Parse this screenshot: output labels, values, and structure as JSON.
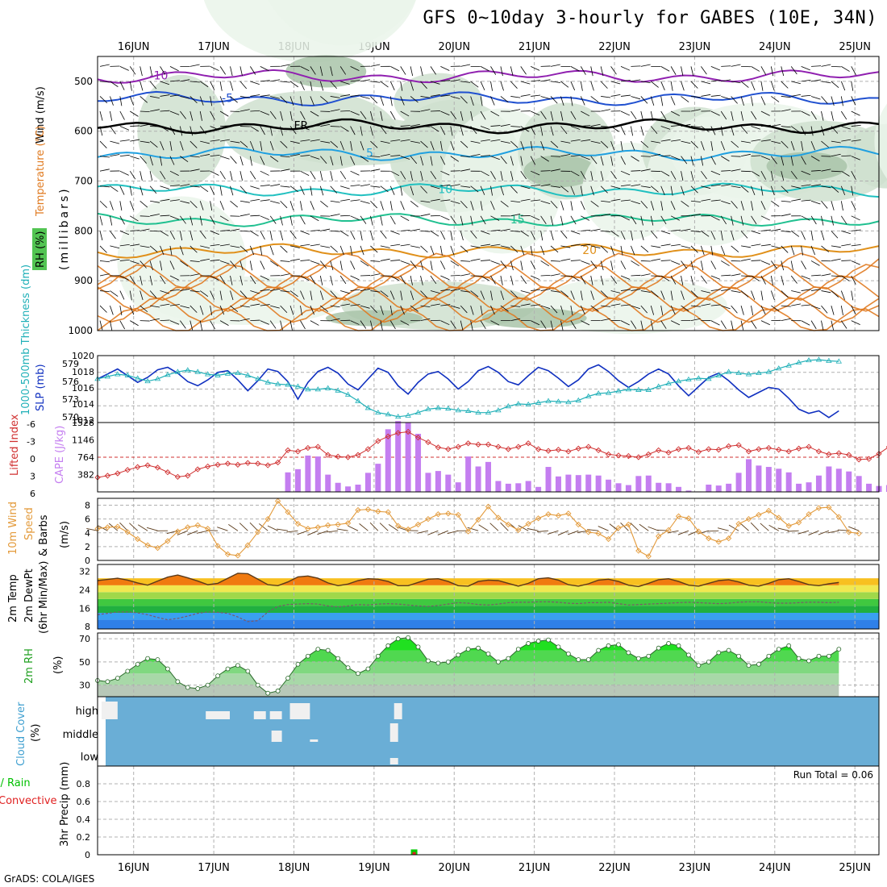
{
  "header": {
    "title": "GFS 0~10day 3-hourly for GABES (10E, 34N)",
    "credit": "GrADS: COLA/IGES"
  },
  "time_axis": {
    "labels": [
      "16JUN",
      "17JUN",
      "18JUN",
      "19JUN",
      "20JUN",
      "21JUN",
      "22JUN",
      "23JUN",
      "24JUN",
      "25JUN"
    ],
    "x_range_days": [
      15.55,
      25.3
    ]
  },
  "colors": {
    "frame": "#000000",
    "grid": "#b0b0b0",
    "rh_shade": [
      "#eaf4ea",
      "#cfe0cf",
      "#a9c4a9",
      "#52c452"
    ],
    "temp_contour": "#e38a1a",
    "cape_bar": "#c47ef0",
    "lifted_index": "#d03030",
    "slp": "#1030c0",
    "thickness": "#20b0b8",
    "wind_speed": "#e39a3a",
    "barb": "#5a3a1a",
    "rh2m": "#00dd00",
    "cloud": "#6aaed6",
    "precip_rain": "#00cc00",
    "precip_conv": "#e02020"
  },
  "chart_data": [
    {
      "id": "upper-air",
      "type": "heatmap",
      "ylabel": "(millibars)",
      "side_labels": [
        "Wind (m/s)",
        "Temperature (°C)",
        "RH (%)"
      ],
      "ylim": [
        1000,
        450
      ],
      "y_ticks": [
        500,
        600,
        700,
        800,
        900,
        1000
      ],
      "temperature_contours": [
        {
          "label": "-10",
          "pressure": 490
        },
        {
          "label": "-5",
          "pressure": 535
        },
        {
          "label": "FR",
          "pressure": 590
        },
        {
          "label": "5",
          "pressure": 645
        },
        {
          "label": "10",
          "pressure": 718
        },
        {
          "label": "15",
          "pressure": 778
        },
        {
          "label": "20",
          "pressure": 840
        }
      ],
      "rh_contour_labels": [
        "30",
        "50",
        "30",
        "30",
        "50",
        "30"
      ]
    },
    {
      "id": "slp-thickness",
      "type": "line",
      "xlabel": "",
      "ylabel_left": "1000-500mb Thickness (dm)",
      "ylabel_right": "SLP (mb)",
      "left_ticks": [
        "579",
        "576",
        "573",
        "570"
      ],
      "right_ticks": [
        "1020",
        "1018",
        "1016",
        "1014",
        "1012"
      ],
      "ylim_slp": [
        1012,
        1020
      ],
      "series": [
        {
          "name": "SLP",
          "values": [
            1017.2,
            1017.8,
            1018.4,
            1017.6,
            1016.8,
            1017.4,
            1018.3,
            1018.6,
            1017.9,
            1016.9,
            1016.4,
            1017.1,
            1018.0,
            1018.2,
            1017.1,
            1015.8,
            1017.0,
            1018.4,
            1018.1,
            1016.9,
            1014.8,
            1016.8,
            1018.1,
            1018.6,
            1017.9,
            1016.6,
            1015.9,
            1017.2,
            1018.5,
            1018.0,
            1016.4,
            1015.4,
            1016.8,
            1017.8,
            1018.1,
            1017.2,
            1016.0,
            1016.9,
            1018.2,
            1018.7,
            1018.0,
            1016.9,
            1016.5,
            1017.6,
            1018.6,
            1018.2,
            1017.3,
            1016.3,
            1017.1,
            1018.4,
            1018.9,
            1018.1,
            1017.0,
            1016.2,
            1016.9,
            1017.8,
            1018.4,
            1017.8,
            1016.4,
            1015.2,
            1016.3,
            1017.4,
            1017.9,
            1017.0,
            1015.9,
            1015.0,
            1015.6,
            1016.2,
            1016.0,
            1014.9,
            1013.6,
            1013.1,
            1013.4,
            1012.6,
            1013.4
          ]
        },
        {
          "name": "Thickness",
          "values": [
            576.0,
            576.4,
            576.8,
            576.6,
            576.1,
            575.6,
            576.0,
            576.7,
            577.2,
            577.5,
            577.2,
            576.8,
            576.6,
            576.9,
            577.0,
            576.6,
            576.0,
            575.4,
            575.1,
            575.0,
            574.7,
            574.2,
            574.2,
            574.4,
            574.0,
            573.3,
            572.2,
            571.0,
            570.2,
            569.9,
            569.5,
            569.7,
            570.2,
            570.8,
            571.0,
            570.9,
            570.6,
            570.5,
            570.2,
            570.2,
            570.6,
            571.3,
            571.7,
            571.6,
            571.9,
            572.2,
            572.1,
            572.0,
            572.3,
            573.0,
            573.5,
            573.6,
            573.9,
            574.2,
            574.1,
            574.1,
            574.7,
            575.2,
            575.6,
            575.9,
            576.1,
            576.0,
            576.6,
            577.2,
            577.0,
            576.8,
            577.0,
            577.2,
            577.8,
            578.3,
            578.8,
            579.2,
            579.3,
            579.1,
            579.0
          ]
        }
      ]
    },
    {
      "id": "cape-li",
      "type": "bar",
      "ylabel_left": "Lifted Index",
      "ylabel_right": "CAPE (J/kg)",
      "left_ticks": [
        "-6",
        "-3",
        "0",
        "3",
        "6"
      ],
      "right_ticks": [
        "1528",
        "1146",
        "764",
        "382"
      ],
      "ylim_cape": [
        0,
        1528
      ],
      "series": [
        {
          "name": "CAPE",
          "values": [
            0,
            0,
            0,
            0,
            0,
            0,
            0,
            0,
            0,
            0,
            0,
            0,
            0,
            0,
            0,
            0,
            0,
            0,
            0,
            430,
            500,
            800,
            780,
            380,
            200,
            120,
            160,
            420,
            620,
            1380,
            1560,
            1520,
            1280,
            420,
            460,
            380,
            210,
            780,
            560,
            660,
            240,
            180,
            190,
            240,
            110,
            550,
            340,
            380,
            370,
            380,
            360,
            270,
            190,
            150,
            350,
            360,
            200,
            190,
            110,
            30,
            10,
            160,
            140,
            180,
            420,
            720,
            580,
            550,
            510,
            430,
            180,
            210,
            360,
            560,
            510,
            450,
            350,
            180,
            130,
            150
          ]
        },
        {
          "name": "Lifted Index",
          "values": [
            3.5,
            3.2,
            2.8,
            2.2,
            1.7,
            1.4,
            1.8,
            2.6,
            3.4,
            3.2,
            2.1,
            1.6,
            1.3,
            1.1,
            1.3,
            1.0,
            1.1,
            1.4,
            0.9,
            -1.2,
            -1.0,
            -1.6,
            -1.8,
            -0.4,
            -0.1,
            0.0,
            -0.4,
            -1.4,
            -2.8,
            -3.6,
            -4.2,
            -4.4,
            -3.4,
            -2.6,
            -1.7,
            -1.4,
            -1.8,
            -2.4,
            -2.2,
            -2.2,
            -1.8,
            -1.4,
            -1.8,
            -2.4,
            -1.4,
            -1.1,
            -1.3,
            -1.0,
            -1.5,
            -1.8,
            -1.2,
            -0.5,
            -0.3,
            -0.2,
            0.0,
            -0.5,
            -1.2,
            -0.8,
            -1.4,
            -1.6,
            -0.9,
            -1.4,
            -1.3,
            -1.9,
            -2.1,
            -1.0,
            -1.4,
            -1.6,
            -1.3,
            -1.0,
            -1.5,
            -1.8,
            -1.0,
            -0.5,
            -0.7,
            -0.4,
            0.4,
            0.3,
            -0.6,
            -1.8
          ]
        }
      ]
    },
    {
      "id": "wind10m",
      "type": "line",
      "ylabel": "10m Wind Speed (m/s) & Barbs",
      "ylim": [
        0,
        9
      ],
      "y_ticks": [
        "8",
        "6",
        "4",
        "2",
        "0"
      ],
      "series": [
        {
          "name": "Speed",
          "values": [
            4.6,
            4.8,
            4.9,
            4.1,
            3.1,
            2.2,
            1.8,
            2.8,
            4.2,
            4.8,
            5.1,
            4.6,
            2.1,
            0.9,
            0.7,
            2.2,
            4.1,
            6.0,
            8.6,
            7.0,
            5.3,
            4.6,
            4.8,
            5.1,
            5.2,
            5.4,
            7.3,
            7.4,
            7.1,
            7.0,
            5.0,
            4.5,
            5.2,
            6.0,
            6.7,
            6.8,
            6.6,
            4.2,
            5.9,
            7.8,
            6.2,
            5.2,
            4.4,
            5.3,
            6.1,
            6.7,
            6.5,
            6.8,
            5.2,
            4.1,
            3.9,
            3.1,
            4.7,
            5.2,
            1.4,
            0.6,
            3.5,
            4.4,
            6.4,
            6.1,
            4.2,
            3.2,
            2.7,
            3.2,
            5.3,
            6.0,
            6.6,
            7.2,
            6.2,
            5.0,
            5.5,
            6.7,
            7.6,
            7.7,
            6.3,
            4.1,
            3.9
          ]
        }
      ]
    },
    {
      "id": "temp2m",
      "type": "area",
      "ylabel": "2m Temp 2m DewPt (6hr Min/Max)",
      "ylim": [
        7,
        35
      ],
      "y_ticks": [
        "32",
        "24",
        "16",
        "8"
      ],
      "series": [
        {
          "name": "2m Temp",
          "values": [
            28.0,
            28.5,
            29.0,
            28.2,
            27.0,
            26.0,
            27.8,
            29.5,
            30.4,
            29.2,
            27.8,
            26.2,
            26.8,
            29.0,
            31.2,
            31.0,
            28.6,
            26.2,
            25.8,
            27.4,
            29.6,
            30.0,
            29.0,
            27.0,
            25.8,
            26.5,
            28.0,
            28.8,
            28.6,
            27.6,
            25.8,
            25.8,
            27.2,
            28.6,
            28.8,
            27.6,
            25.8,
            25.6,
            27.6,
            28.2,
            28.0,
            26.8,
            25.6,
            26.8,
            28.8,
            29.2,
            28.2,
            26.2,
            25.6,
            26.6,
            28.2,
            28.6,
            27.6,
            26.0,
            25.4,
            26.8,
            28.4,
            28.8,
            27.6,
            26.0,
            25.6,
            26.8,
            28.0,
            28.4,
            27.4,
            26.0,
            25.6,
            26.8,
            28.4,
            28.8,
            27.6,
            26.2,
            25.8,
            26.6,
            27.2
          ]
        },
        {
          "name": "2m DewPt",
          "values": [
            13.2,
            13.8,
            14.4,
            14.4,
            14.0,
            13.2,
            12.0,
            11.0,
            11.6,
            12.6,
            13.8,
            14.4,
            14.2,
            13.8,
            12.2,
            10.2,
            10.6,
            14.4,
            16.8,
            17.6,
            17.8,
            18.0,
            17.8,
            17.0,
            16.6,
            17.0,
            17.6,
            17.4,
            17.8,
            18.0,
            17.8,
            17.4,
            17.0,
            16.8,
            17.2,
            17.8,
            18.4,
            18.2,
            17.6,
            17.4,
            17.8,
            18.4,
            18.6,
            18.6,
            18.8,
            18.8,
            18.6,
            18.2,
            18.0,
            18.4,
            18.4,
            18.6,
            18.0,
            17.4,
            17.6,
            17.8,
            18.0,
            18.2,
            18.4,
            18.6,
            18.4,
            18.2,
            18.0,
            18.2,
            18.6,
            18.8,
            18.8,
            18.4,
            18.2,
            18.2,
            18.4,
            18.6,
            18.6,
            18.4,
            18.6
          ]
        }
      ]
    },
    {
      "id": "rh2m",
      "type": "area",
      "ylabel": "2m RH (%)",
      "ylim": [
        20,
        75
      ],
      "y_ticks": [
        "70",
        "50",
        "30"
      ],
      "series": [
        {
          "name": "2m RH",
          "values": [
            34,
            33,
            36,
            42,
            48,
            53,
            52,
            44,
            33,
            28,
            27,
            30,
            38,
            44,
            47,
            42,
            30,
            23,
            25,
            36,
            48,
            55,
            61,
            60,
            53,
            45,
            40,
            44,
            55,
            64,
            70,
            71,
            63,
            51,
            49,
            50,
            56,
            61,
            62,
            57,
            50,
            53,
            61,
            66,
            68,
            69,
            63,
            57,
            52,
            52,
            60,
            64,
            65,
            58,
            53,
            55,
            62,
            66,
            64,
            56,
            47,
            50,
            58,
            60,
            55,
            47,
            48,
            55,
            61,
            64,
            53,
            51,
            55,
            55,
            61
          ]
        }
      ]
    },
    {
      "id": "cloud",
      "type": "table",
      "ylabel": "Cloud Cover (%)",
      "levels": [
        "high",
        "middle",
        "low"
      ]
    },
    {
      "id": "precip",
      "type": "bar",
      "ylabel_left": "3hr Precip (mm)",
      "side_labels": [
        "Total / Rain",
        "Convective"
      ],
      "ylim": [
        0,
        1
      ],
      "y_ticks": [
        "0.8",
        "0.6",
        "0.4",
        "0.2",
        "0"
      ],
      "run_total": "Run Total = 0.06",
      "series": [
        {
          "name": "Total / Rain",
          "values": [
            {
              "day": 19.5,
              "value": 0.06
            }
          ]
        },
        {
          "name": "Convective",
          "values": [
            {
              "day": 19.5,
              "value": 0.03
            }
          ]
        }
      ]
    }
  ]
}
